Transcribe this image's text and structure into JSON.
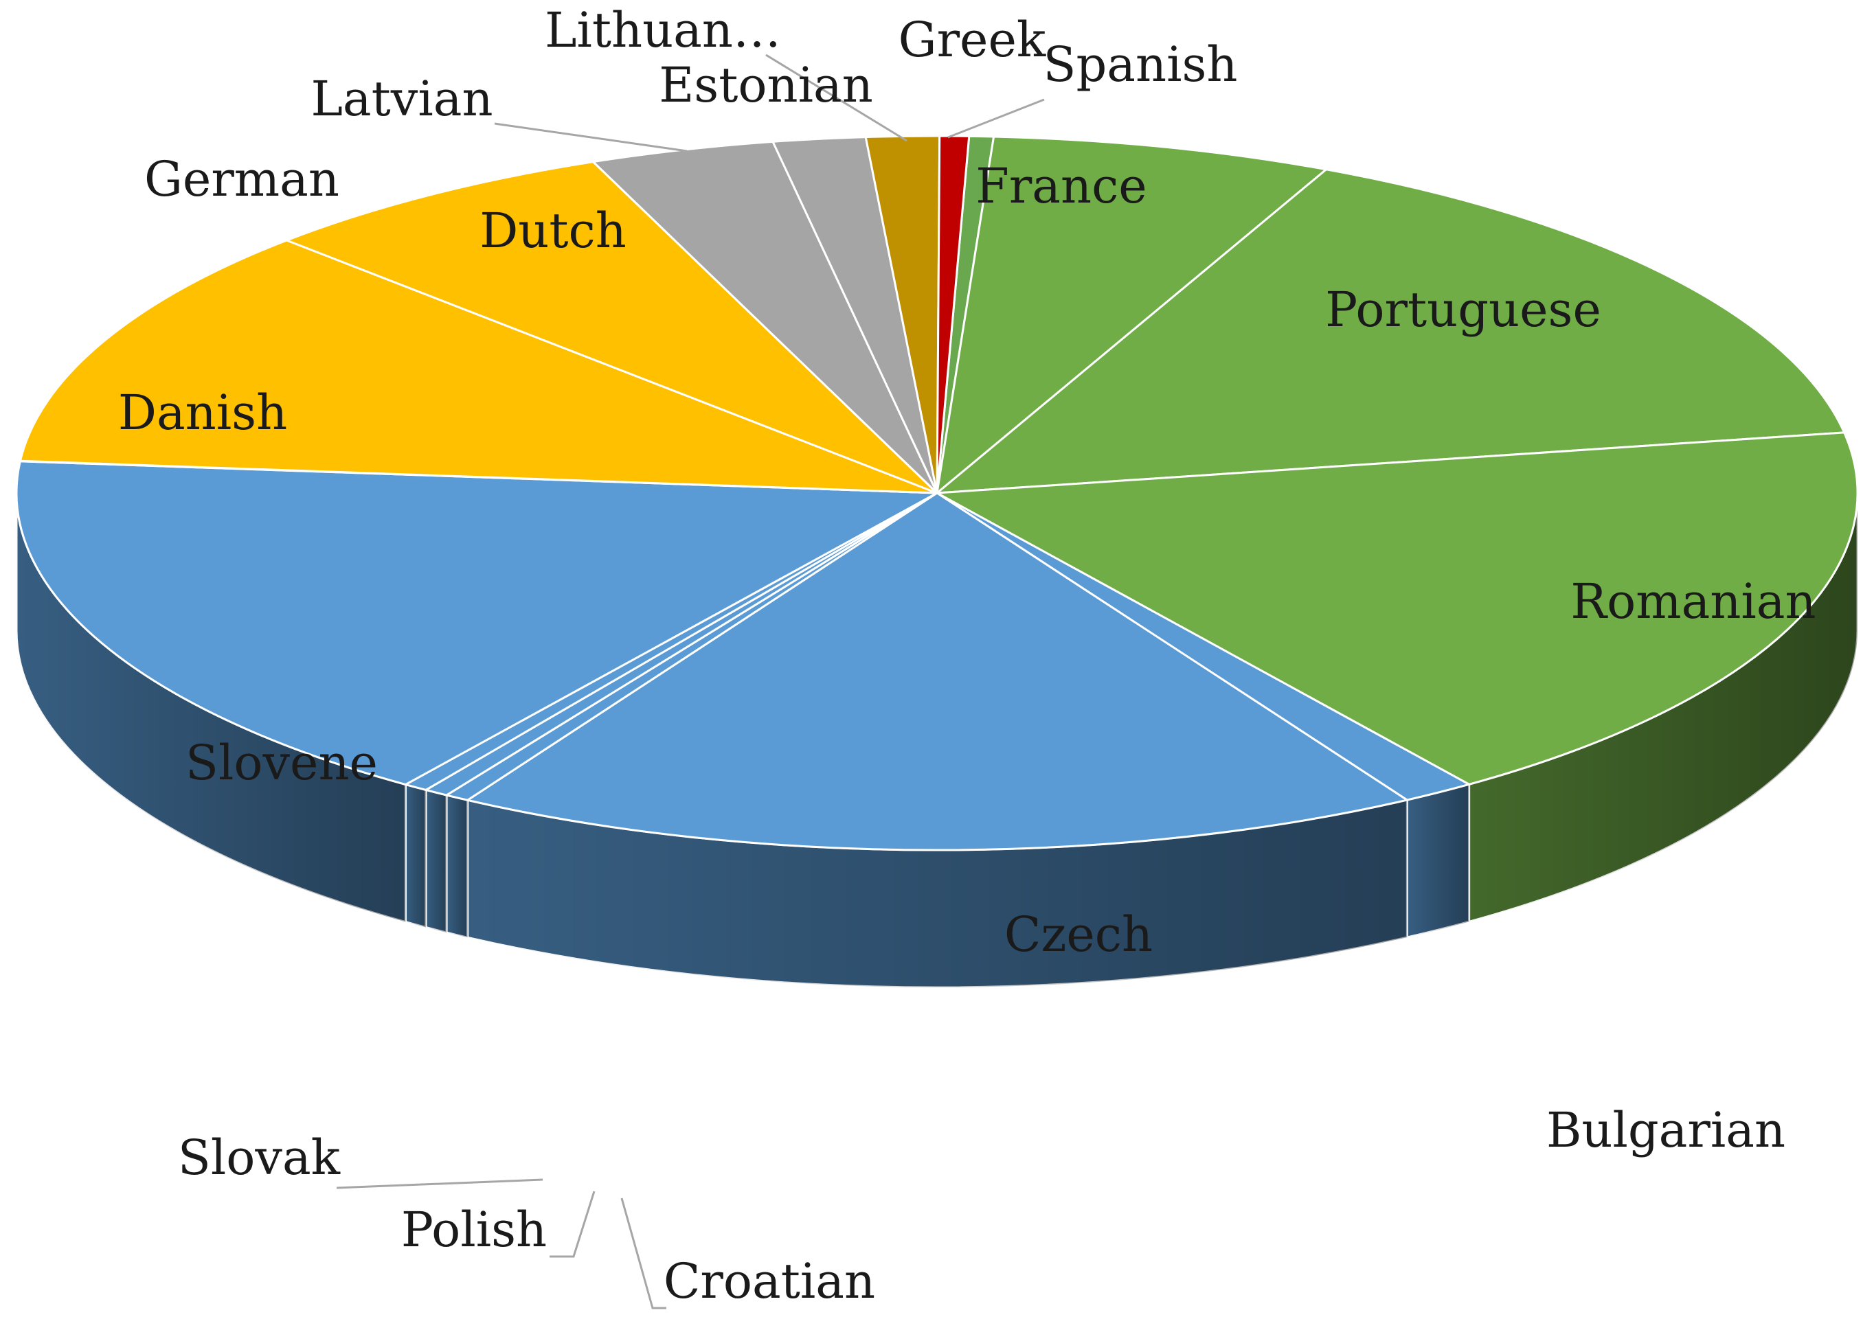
{
  "chart_data": {
    "type": "pie",
    "title": "",
    "style": "3d-exploded-none",
    "slices": [
      {
        "label": "Spanish",
        "value": 0.5,
        "color": "#6aa84f"
      },
      {
        "label": "France",
        "value": 7,
        "color": "#70ad47"
      },
      {
        "label": "Portuguese",
        "value": 18,
        "color": "#70ad47"
      },
      {
        "label": "Romanian",
        "value": 21,
        "color": "#70ad47"
      },
      {
        "label": "Bulgarian",
        "value": 1.5,
        "color": "#5b9bd5"
      },
      {
        "label": "Czech",
        "value": 20,
        "color": "#5b9bd5"
      },
      {
        "label": "Croatian",
        "value": 0.5,
        "color": "#5b9bd5"
      },
      {
        "label": "Polish",
        "value": 0.5,
        "color": "#5b9bd5"
      },
      {
        "label": "Slovak",
        "value": 0.5,
        "color": "#5b9bd5"
      },
      {
        "label": "Slovene",
        "value": 19.5,
        "color": "#5b9bd5"
      },
      {
        "label": "German",
        "value": 0.02,
        "color": "#ffc000"
      },
      {
        "label": "Danish",
        "value": 13,
        "color": "#ffc000"
      },
      {
        "label": "Dutch",
        "value": 7.5,
        "color": "#ffc000"
      },
      {
        "label": "Latvian",
        "value": 3.8,
        "color": "#a5a5a5"
      },
      {
        "label": "Estonian",
        "value": 1.9,
        "color": "#a5a5a5"
      },
      {
        "label": "Lithuan…",
        "value": 1.5,
        "color": "#bf9000"
      },
      {
        "label": "Greek",
        "value": 0.6,
        "color": "#c00000"
      }
    ]
  }
}
